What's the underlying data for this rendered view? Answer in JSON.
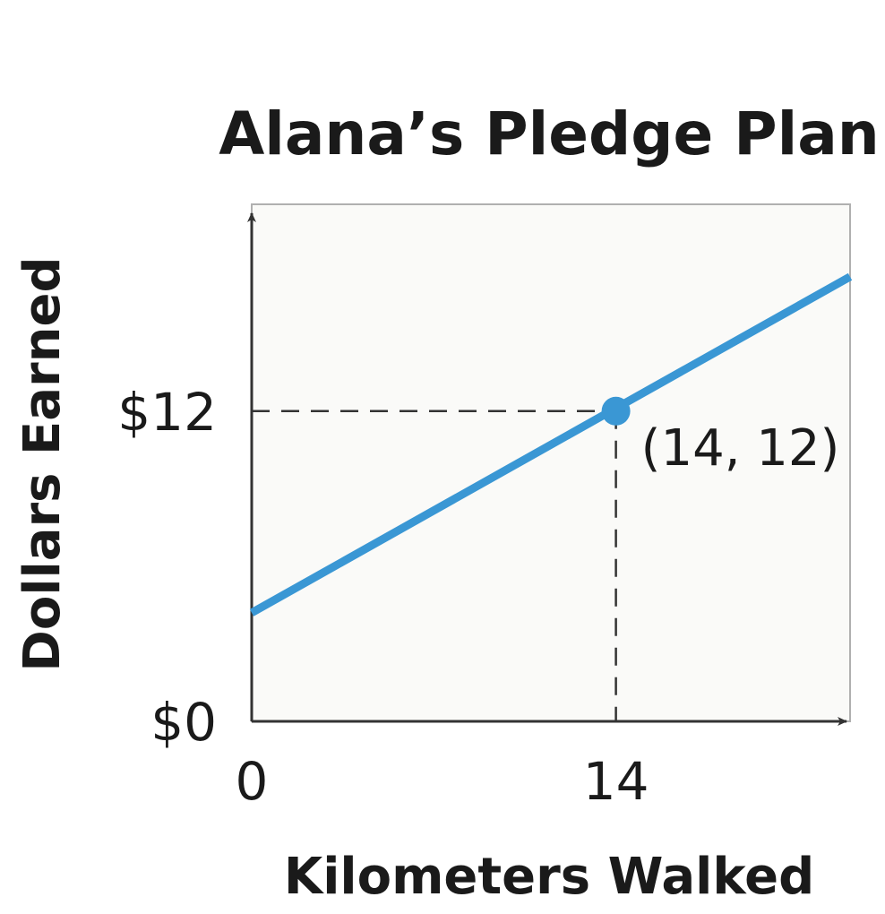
{
  "chart_data": {
    "type": "line",
    "title": "Alana’s Pledge Plan",
    "xlabel": "Kilometers Walked",
    "ylabel": "Dollars Earned",
    "xlim": [
      0,
      23
    ],
    "ylim": [
      0,
      20
    ],
    "x_ticks": [
      {
        "value": 0,
        "label": "0"
      },
      {
        "value": 14,
        "label": "14"
      }
    ],
    "y_ticks": [
      {
        "value": 0,
        "label": "$0"
      },
      {
        "value": 12,
        "label": "$12"
      }
    ],
    "series": [
      {
        "color": "#3a97d4",
        "x": [
          0,
          23
        ],
        "y": [
          4.2,
          17.2
        ]
      }
    ],
    "highlight_point": {
      "x": 14,
      "y": 12,
      "label": "(14, 12)",
      "color": "#3a97d4"
    },
    "grid": false,
    "legend": "none"
  }
}
